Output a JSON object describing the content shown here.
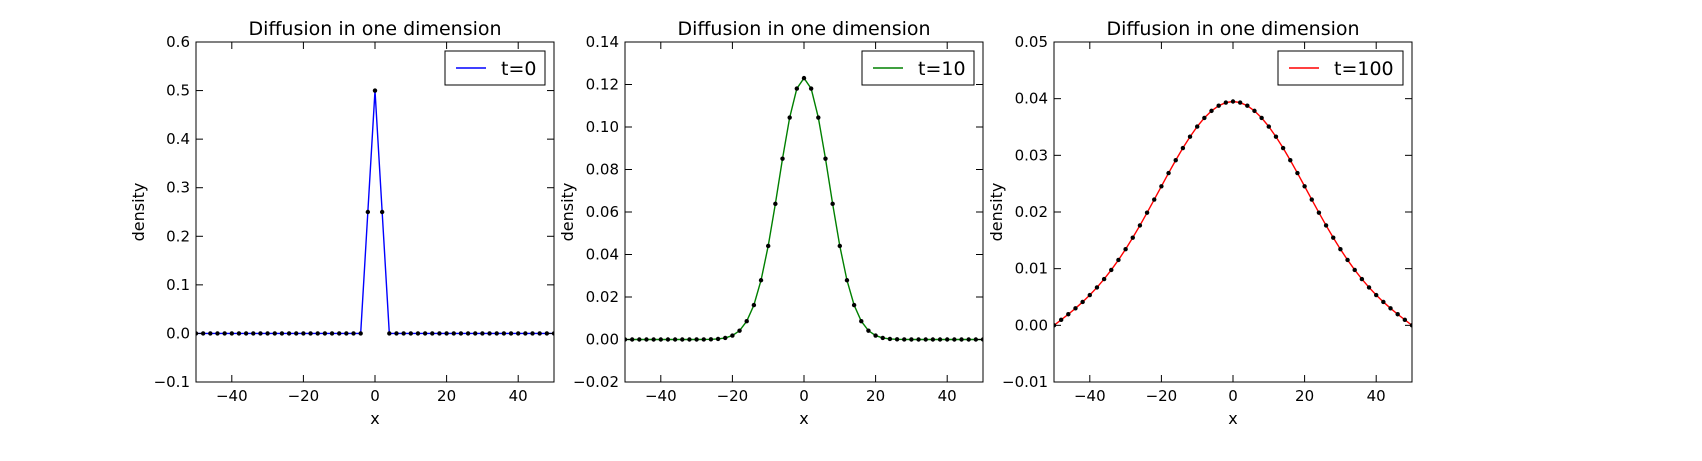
{
  "chart_data": [
    {
      "type": "line",
      "title": "Diffusion in one dimension",
      "xlabel": "x",
      "ylabel": "density",
      "xlim": [
        -50,
        50
      ],
      "ylim": [
        -0.1,
        0.6
      ],
      "xticks": [
        -40,
        -20,
        0,
        20,
        40
      ],
      "yticks": [
        -0.1,
        0.0,
        0.1,
        0.2,
        0.3,
        0.4,
        0.5,
        0.6
      ],
      "xtick_labels": [
        "−40",
        "−20",
        "0",
        "20",
        "40"
      ],
      "ytick_labels": [
        "−0.1",
        "0.0",
        "0.1",
        "0.2",
        "0.3",
        "0.4",
        "0.5",
        "0.6"
      ],
      "legend_position": "top-right",
      "series": [
        {
          "name": "t=0",
          "color": "#0000ff",
          "markers": true,
          "marker_color": "#000000",
          "t": 0
        }
      ]
    },
    {
      "type": "line",
      "title": "Diffusion in one dimension",
      "xlabel": "x",
      "ylabel": "density",
      "xlim": [
        -50,
        50
      ],
      "ylim": [
        -0.02,
        0.14
      ],
      "xticks": [
        -40,
        -20,
        0,
        20,
        40
      ],
      "yticks": [
        -0.02,
        0.0,
        0.02,
        0.04,
        0.06,
        0.08,
        0.1,
        0.12,
        0.14
      ],
      "xtick_labels": [
        "−40",
        "−20",
        "0",
        "20",
        "40"
      ],
      "ytick_labels": [
        "−0.02",
        "0.00",
        "0.02",
        "0.04",
        "0.06",
        "0.08",
        "0.10",
        "0.12",
        "0.14"
      ],
      "legend_position": "top-right",
      "series": [
        {
          "name": "t=10",
          "color": "#008000",
          "markers": true,
          "marker_color": "#000000",
          "t": 10
        }
      ]
    },
    {
      "type": "line",
      "title": "Diffusion in one dimension",
      "xlabel": "x",
      "ylabel": "density",
      "xlim": [
        -50,
        50
      ],
      "ylim": [
        -0.01,
        0.05
      ],
      "xticks": [
        -40,
        -20,
        0,
        20,
        40
      ],
      "yticks": [
        -0.01,
        0.0,
        0.01,
        0.02,
        0.03,
        0.04,
        0.05
      ],
      "xtick_labels": [
        "−40",
        "−20",
        "0",
        "20",
        "40"
      ],
      "ytick_labels": [
        "−0.01",
        "0.00",
        "0.01",
        "0.02",
        "0.03",
        "0.04",
        "0.05"
      ],
      "legend_position": "top-right",
      "series": [
        {
          "name": "t=100",
          "color": "#ff0000",
          "markers": true,
          "marker_color": "#000000",
          "t": 100
        }
      ]
    }
  ]
}
